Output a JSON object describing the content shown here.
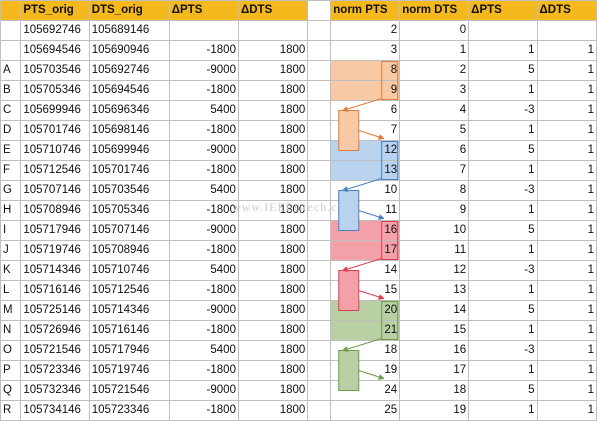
{
  "watermark": "www.IEEECtech.com",
  "columns": [
    "",
    "PTS_orig",
    "DTS_orig",
    "ΔPTS",
    "ΔDTS",
    "",
    "norm PTS",
    "norm DTS",
    "ΔPTS",
    "ΔDTS"
  ],
  "rows": [
    [
      "",
      "105692746",
      "105689146",
      "",
      "",
      "",
      "2",
      "0",
      "",
      ""
    ],
    [
      "",
      "105694546",
      "105690946",
      "-1800",
      "1800",
      "",
      "3",
      "1",
      "1",
      "1"
    ],
    [
      "A",
      "105703546",
      "105692746",
      "-9000",
      "1800",
      "",
      "8",
      "2",
      "5",
      "1"
    ],
    [
      "B",
      "105705346",
      "105694546",
      "-1800",
      "1800",
      "",
      "9",
      "3",
      "1",
      "1"
    ],
    [
      "C",
      "105699946",
      "105696346",
      "5400",
      "1800",
      "",
      "6",
      "4",
      "-3",
      "1"
    ],
    [
      "D",
      "105701746",
      "105698146",
      "-1800",
      "1800",
      "",
      "7",
      "5",
      "1",
      "1"
    ],
    [
      "E",
      "105710746",
      "105699946",
      "-9000",
      "1800",
      "",
      "12",
      "6",
      "5",
      "1"
    ],
    [
      "F",
      "105712546",
      "105701746",
      "-1800",
      "1800",
      "",
      "13",
      "7",
      "1",
      "1"
    ],
    [
      "G",
      "105707146",
      "105703546",
      "5400",
      "1800",
      "",
      "10",
      "8",
      "-3",
      "1"
    ],
    [
      "H",
      "105708946",
      "105705346",
      "-1800",
      "1800",
      "",
      "11",
      "9",
      "1",
      "1"
    ],
    [
      "I",
      "105717946",
      "105707146",
      "-9000",
      "1800",
      "",
      "16",
      "10",
      "5",
      "1"
    ],
    [
      "J",
      "105719746",
      "105708946",
      "-1800",
      "1800",
      "",
      "17",
      "11",
      "1",
      "1"
    ],
    [
      "K",
      "105714346",
      "105710746",
      "5400",
      "1800",
      "",
      "14",
      "12",
      "-3",
      "1"
    ],
    [
      "L",
      "105716146",
      "105712546",
      "-1800",
      "1800",
      "",
      "15",
      "13",
      "1",
      "1"
    ],
    [
      "M",
      "105725146",
      "105714346",
      "-9000",
      "1800",
      "",
      "20",
      "14",
      "5",
      "1"
    ],
    [
      "N",
      "105726946",
      "105716146",
      "-1800",
      "1800",
      "",
      "21",
      "15",
      "1",
      "1"
    ],
    [
      "O",
      "105721546",
      "105717946",
      "5400",
      "1800",
      "",
      "18",
      "16",
      "-3",
      "1"
    ],
    [
      "P",
      "105723346",
      "105719746",
      "-1800",
      "1800",
      "",
      "19",
      "17",
      "1",
      "1"
    ],
    [
      "Q",
      "105732346",
      "105721546",
      "-9000",
      "1800",
      "",
      "24",
      "18",
      "5",
      "1"
    ],
    [
      "R",
      "105734146",
      "105723346",
      "-1800",
      "1800",
      "",
      "25",
      "19",
      "1",
      "1"
    ]
  ],
  "highlight_groups": [
    {
      "color": "#f7c9a5",
      "stroke": "#e07b39",
      "rows": [
        2,
        3
      ],
      "target_row": 4
    },
    {
      "color": "#b9d2ee",
      "stroke": "#4a7fc1",
      "rows": [
        6,
        7
      ],
      "target_row": 8
    },
    {
      "color": "#f4a0a8",
      "stroke": "#d9404f",
      "rows": [
        10,
        11
      ],
      "target_row": 12
    },
    {
      "color": "#b8d0a4",
      "stroke": "#6e9a4a",
      "rows": [
        14,
        15
      ],
      "target_row": 16
    }
  ]
}
